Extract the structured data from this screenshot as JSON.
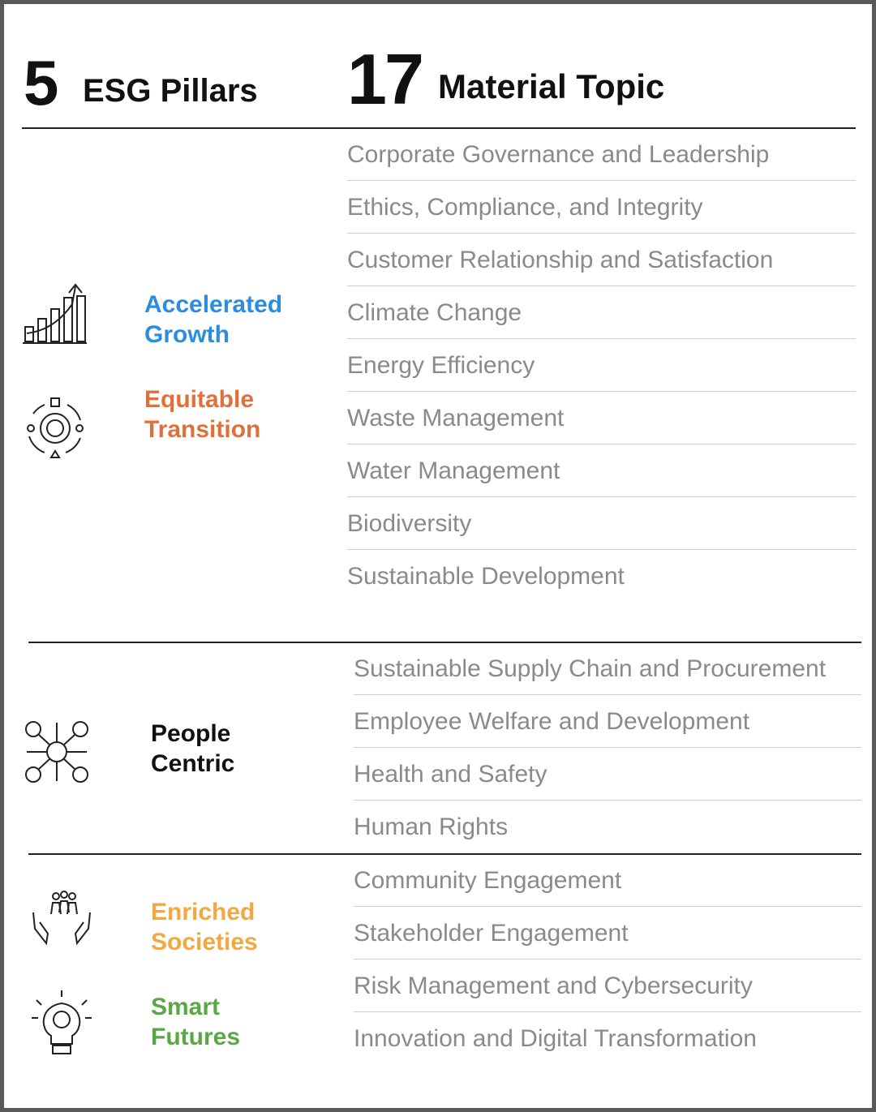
{
  "header": {
    "pillars_count": 5,
    "pillars_label": "ESG Pillars",
    "topics_count": 17,
    "topics_label": "Material Topic"
  },
  "groups": [
    {
      "pillars": [
        {
          "name": "Accelerated Growth",
          "color": "#2b8de0"
        },
        {
          "name": "Equitable Transition",
          "color": "#e0703a"
        }
      ],
      "topics": [
        "Corporate Governance and Leadership",
        "Ethics, Compliance, and Integrity",
        "Customer Relationship and Satisfaction",
        "Climate Change",
        "Energy Efficiency",
        "Waste Management",
        "Water Management",
        "Biodiversity",
        "Sustainable Development"
      ]
    },
    {
      "pillars": [
        {
          "name": "People Centric",
          "color": "#111111"
        }
      ],
      "topics": [
        "Sustainable Supply Chain and Procurement",
        "Employee Welfare and Development",
        "Health and Safety",
        "Human Rights"
      ]
    },
    {
      "pillars": [
        {
          "name": "Enriched Societies",
          "color": "#f0a840"
        },
        {
          "name": "Smart Futures",
          "color": "#5aa845"
        }
      ],
      "topics": [
        "Community Engagement",
        "Stakeholder Engagement",
        "Risk Management and Cybersecurity",
        "Innovation and Digital Transformation"
      ]
    }
  ]
}
